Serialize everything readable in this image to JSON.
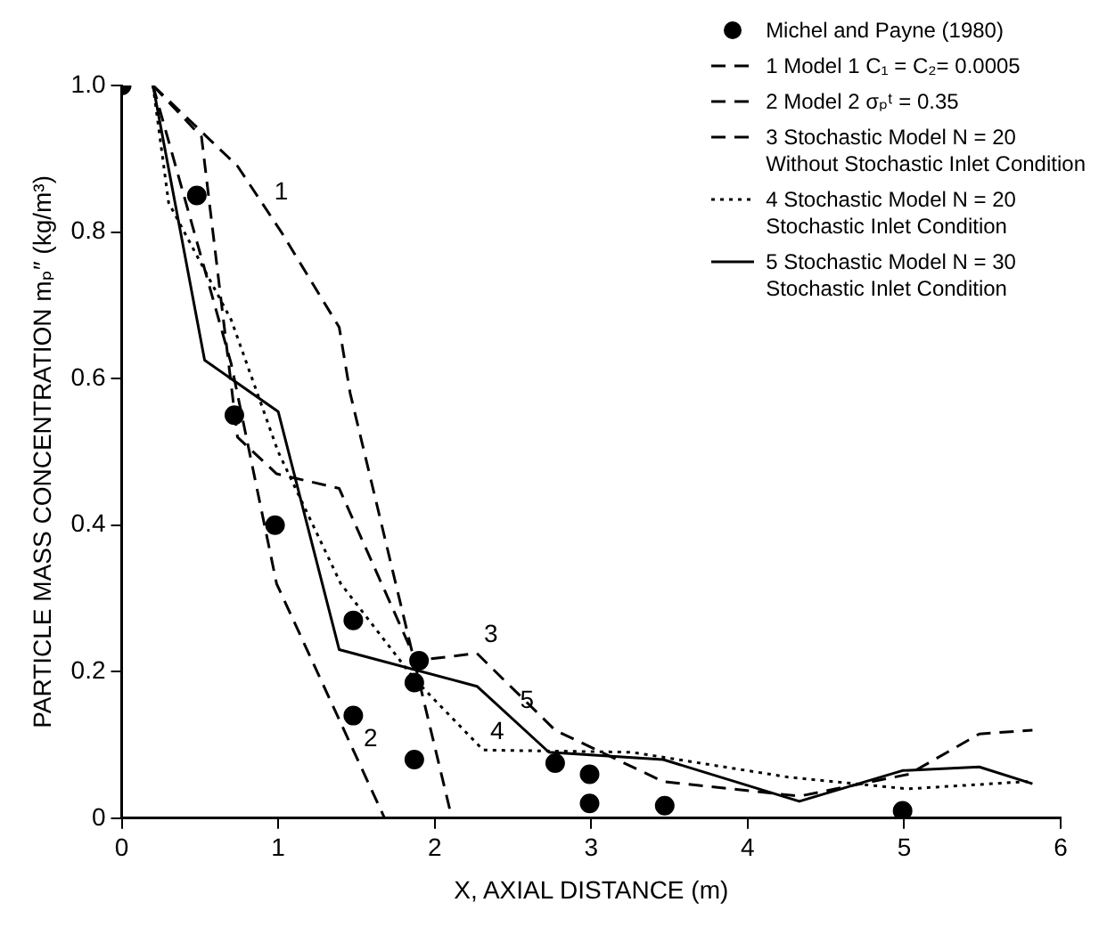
{
  "chart_data": {
    "type": "line",
    "xlabel": "X, AXIAL DISTANCE (m)",
    "ylabel": "PARTICLE MASS CONCENTRATION mₚ″ (kg/m³)",
    "xlim": [
      0,
      6
    ],
    "xticks": [
      0,
      1,
      2,
      3,
      4,
      5,
      6
    ],
    "ylim": [
      0,
      1.0
    ],
    "yticks": [
      0,
      0.2,
      0.4,
      0.6,
      0.8,
      {
        "value": 1.0,
        "label": "1.0"
      }
    ],
    "grid": false,
    "legend": "top right",
    "series": [
      {
        "name": "Michel and Payne (1980)",
        "type": "scatter",
        "marker": "circle",
        "color": "#000000",
        "x": [
          0,
          0.48,
          0.72,
          0.98,
          1.48,
          1.48,
          1.9,
          1.87,
          1.87,
          2.77,
          2.99,
          2.99,
          3.47,
          4.99
        ],
        "values": [
          1.0,
          0.85,
          0.55,
          0.4,
          0.27,
          0.14,
          0.215,
          0.185,
          0.08,
          0.075,
          0.06,
          0.02,
          0.017,
          0.01
        ]
      },
      {
        "name": "1   Model 1     C₁ = C₂= 0.0005",
        "type": "line",
        "line_style": "dashed",
        "color": "#000000",
        "x": [
          0.2,
          0.74,
          1.02,
          1.39,
          1.46,
          2.11
        ],
        "values": [
          1.0,
          0.89,
          0.8,
          0.67,
          0.58,
          0
        ]
      },
      {
        "name": "2   Model 2     σₚᵗ = 0.35",
        "type": "line",
        "line_style": "dashed",
        "color": "#000000",
        "x": [
          0.2,
          0.7,
          0.99,
          1.68
        ],
        "values": [
          1.0,
          0.62,
          0.32,
          0
        ]
      },
      {
        "name": "3   Stochastic Model     N = 20\nWithout Stochastic Inlet Condition",
        "type": "line",
        "line_style": "dashed",
        "color": "#000000",
        "x": [
          0.2,
          0.51,
          0.74,
          0.99,
          1.39,
          1.88,
          2.27,
          2.77,
          3.46,
          4.33,
          5.03,
          5.48,
          5.82
        ],
        "values": [
          1.0,
          0.93,
          0.52,
          0.47,
          0.45,
          0.215,
          0.225,
          0.12,
          0.05,
          0.03,
          0.06,
          0.115,
          0.12
        ]
      },
      {
        "name": "4   Stochastic Model     N = 20\nStochastic Inlet Condition",
        "type": "line",
        "line_style": "dotted",
        "color": "#000000",
        "x": [
          0.2,
          0.3,
          0.7,
          1.0,
          1.4,
          1.87,
          2.31,
          3.26,
          4.26,
          5.02,
          5.79
        ],
        "values": [
          1.0,
          0.84,
          0.68,
          0.5,
          0.32,
          0.19,
          0.093,
          0.09,
          0.056,
          0.04,
          0.05
        ]
      },
      {
        "name": "5   Stochastic Model     N = 30\nStochastic Inlet Condition",
        "type": "line",
        "line_style": "solid",
        "color": "#000000",
        "x": [
          0.2,
          0.53,
          1.0,
          1.39,
          2.27,
          2.73,
          3.46,
          4.33,
          4.99,
          5.48,
          5.82
        ],
        "values": [
          1.0,
          0.625,
          0.555,
          0.23,
          0.18,
          0.09,
          0.08,
          0.023,
          0.065,
          0.07,
          0.047
        ]
      }
    ],
    "annotations": [
      {
        "text": "1",
        "x": 0.93,
        "y": 0.83
      },
      {
        "text": "2",
        "x": 1.5,
        "y": 0.083
      },
      {
        "text": "3",
        "x": 2.27,
        "y": 0.225
      },
      {
        "text": "5",
        "x": 2.5,
        "y": 0.135
      },
      {
        "text": "4",
        "x": 2.31,
        "y": 0.093
      }
    ]
  }
}
